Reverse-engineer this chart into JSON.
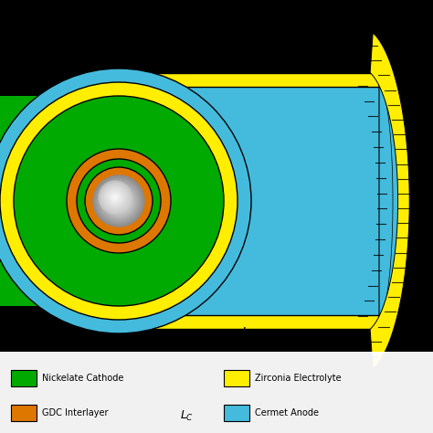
{
  "background_color": "#000000",
  "colors": {
    "green_cathode": "#00AA00",
    "yellow_electrolyte": "#FFEE00",
    "cyan_anode": "#44BBDD",
    "orange_gdc": "#DD7700",
    "white_hole": "#FFFFFF",
    "black": "#000000",
    "light_cyan": "#88DDEE"
  },
  "legend": [
    {
      "label": "Nickelate Cathode",
      "color": "#00AA00",
      "col": 0,
      "row": 0
    },
    {
      "label": "Zirconia Electrolyte",
      "color": "#FFEE00",
      "col": 1,
      "row": 0
    },
    {
      "label": "GDC Interlayer",
      "color": "#DD7700",
      "col": 0,
      "row": 1
    },
    {
      "label": "Cermet Anode",
      "color": "#44BBDD",
      "col": 1,
      "row": 1
    }
  ],
  "lc_label": "$L_C$"
}
